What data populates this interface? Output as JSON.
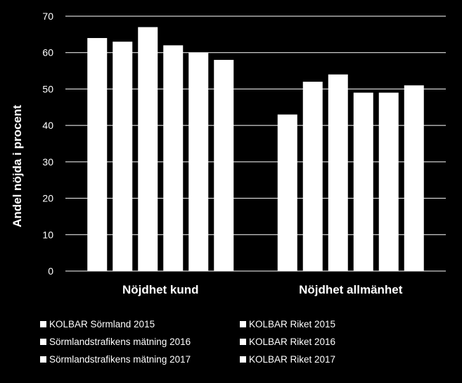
{
  "chart_data": {
    "type": "bar",
    "ylabel": "Andel nöjda i procent",
    "xlabel": "",
    "ylim": [
      0,
      70
    ],
    "yticks": [
      0,
      10,
      20,
      30,
      40,
      50,
      60,
      70
    ],
    "grid": true,
    "legend_position": "bottom",
    "categories": [
      "Nöjdhet kund",
      "Nöjdhet allmänhet"
    ],
    "series": [
      {
        "name": "KOLBAR Sörmland 2015",
        "values": [
          64,
          43
        ]
      },
      {
        "name": "KOLBAR Riket 2015",
        "values": [
          63,
          52
        ]
      },
      {
        "name": "Sörmlandstrafikens mätning 2016",
        "values": [
          67,
          54
        ]
      },
      {
        "name": "KOLBAR Riket 2016",
        "values": [
          62,
          49
        ]
      },
      {
        "name": "Sörmlandstrafikens mätning 2017",
        "values": [
          60,
          49
        ]
      },
      {
        "name": "KOLBAR Riket 2017",
        "values": [
          58,
          51
        ]
      }
    ],
    "colors": {
      "background": "#000000",
      "bars": "#ffffff",
      "grid": "#ffffff",
      "text": "#ffffff"
    }
  }
}
